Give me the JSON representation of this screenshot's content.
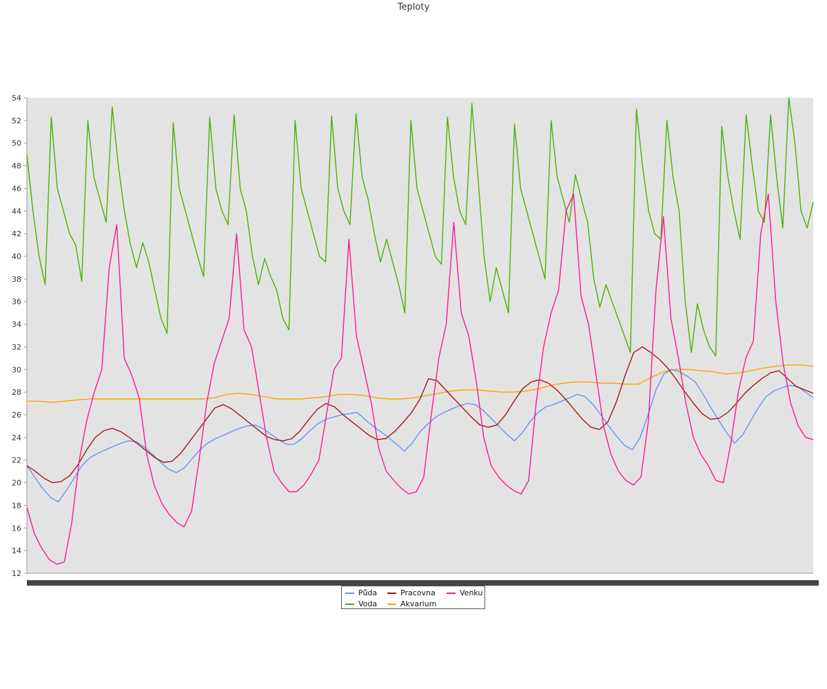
{
  "chart_data": {
    "type": "line",
    "title": "Teploty",
    "xlabel": "",
    "ylabel": "",
    "ylim": [
      12,
      54
    ],
    "yticks": [
      12,
      14,
      16,
      18,
      20,
      22,
      24,
      26,
      28,
      30,
      32,
      34,
      36,
      38,
      40,
      42,
      44,
      46,
      48,
      50,
      52,
      54
    ],
    "grid": false,
    "legend_position": "bottom-center",
    "series": [
      {
        "name": "Půda",
        "color": "#6495ed",
        "values": [
          21.5,
          20.5,
          19.5,
          18.7,
          18.3,
          19.3,
          20.4,
          21.5,
          22.2,
          22.6,
          22.9,
          23.2,
          23.5,
          23.7,
          23.6,
          23.1,
          22.5,
          21.8,
          21.2,
          20.9,
          21.3,
          22.1,
          22.9,
          23.5,
          23.9,
          24.2,
          24.5,
          24.8,
          25.0,
          25.1,
          24.8,
          24.3,
          23.8,
          23.4,
          23.4,
          23.9,
          24.6,
          25.2,
          25.6,
          25.8,
          26.0,
          26.1,
          26.2,
          25.6,
          25.0,
          24.5,
          24.0,
          23.4,
          22.8,
          23.5,
          24.5,
          25.2,
          25.8,
          26.2,
          26.5,
          26.8,
          27.0,
          26.9,
          26.4,
          25.7,
          25.0,
          24.3,
          23.7,
          24.4,
          25.4,
          26.2,
          26.7,
          26.9,
          27.2,
          27.5,
          27.8,
          27.6,
          26.9,
          26.0,
          25.0,
          24.1,
          23.3,
          22.9,
          24.0,
          26.0,
          28.2,
          29.6,
          30.0,
          29.8,
          29.4,
          28.9,
          27.8,
          26.6,
          25.5,
          24.4,
          23.5,
          24.2,
          25.4,
          26.6,
          27.6,
          28.1,
          28.4,
          28.6,
          28.5,
          28.0,
          27.5
        ]
      },
      {
        "name": "Voda",
        "color": "#4cae00",
        "values": [
          49.0,
          44.0,
          40.0,
          37.5,
          52.3,
          46.0,
          44.0,
          42.0,
          41.0,
          37.8,
          52.0,
          47.0,
          45.0,
          43.0,
          53.2,
          48.0,
          44.0,
          41.0,
          39.0,
          41.2,
          39.5,
          37.0,
          34.5,
          33.2,
          51.8,
          46.0,
          44.0,
          42.0,
          40.0,
          38.2,
          52.3,
          46.0,
          44.0,
          42.8,
          52.5,
          46.0,
          44.0,
          40.0,
          37.5,
          39.8,
          38.2,
          37.0,
          34.5,
          33.5,
          52.0,
          46.0,
          44.0,
          42.0,
          40.0,
          39.5,
          52.4,
          46.0,
          44.0,
          42.8,
          52.6,
          47.0,
          45.0,
          42.0,
          39.5,
          41.5,
          39.5,
          37.5,
          35.0,
          52.0,
          46.0,
          44.0,
          42.0,
          40.0,
          39.3,
          52.3,
          47.0,
          44.0,
          42.8,
          53.5,
          47.0,
          40.0,
          36.0,
          39.0,
          37.0,
          35.0,
          51.7,
          46.0,
          44.0,
          42.0,
          40.0,
          38.0,
          52.0,
          47.0,
          45.0,
          43.0,
          47.2,
          45.0,
          43.0,
          38.0,
          35.5,
          37.5,
          36.0,
          34.5,
          33.0,
          31.5,
          53.0,
          48.0,
          44.0,
          42.0,
          41.5,
          52.0,
          47.0,
          44.0,
          36.0,
          31.5,
          35.8,
          33.5,
          32.0,
          31.2,
          51.5,
          47.0,
          44.0,
          41.5,
          52.5,
          48.0,
          44.0,
          43.0,
          52.5,
          47.0,
          42.5,
          54.0,
          50.0,
          44.0,
          42.5,
          44.8
        ]
      },
      {
        "name": "Pracovna",
        "color": "#a01818",
        "values": [
          21.5,
          21.0,
          20.4,
          20.0,
          20.1,
          20.6,
          21.6,
          22.9,
          24.0,
          24.6,
          24.8,
          24.5,
          24.0,
          23.4,
          22.8,
          22.2,
          21.8,
          21.9,
          22.6,
          23.6,
          24.6,
          25.6,
          26.6,
          26.9,
          26.5,
          25.9,
          25.3,
          24.7,
          24.1,
          23.8,
          23.7,
          23.9,
          24.6,
          25.6,
          26.5,
          27.0,
          26.7,
          26.0,
          25.4,
          24.8,
          24.2,
          23.8,
          23.9,
          24.5,
          25.3,
          26.2,
          27.4,
          29.2,
          29.0,
          28.2,
          27.4,
          26.6,
          25.8,
          25.1,
          24.9,
          25.1,
          26.0,
          27.2,
          28.3,
          28.9,
          29.1,
          28.8,
          28.2,
          27.4,
          26.5,
          25.6,
          24.9,
          24.7,
          25.4,
          27.2,
          29.5,
          31.5,
          32.0,
          31.5,
          30.9,
          30.1,
          29.1,
          28.0,
          27.0,
          26.1,
          25.6,
          25.7,
          26.2,
          27.0,
          27.9,
          28.6,
          29.2,
          29.7,
          29.9,
          29.2,
          28.5,
          28.2,
          27.9
        ]
      },
      {
        "name": "Venku",
        "color": "#ff1493",
        "values": [
          17.8,
          15.5,
          14.2,
          13.2,
          12.8,
          13.0,
          16.5,
          22.0,
          25.5,
          28.0,
          30.0,
          39.0,
          42.8,
          31.0,
          29.5,
          27.5,
          22.5,
          19.8,
          18.2,
          17.2,
          16.5,
          16.1,
          17.5,
          22.0,
          27.0,
          30.5,
          32.5,
          34.5,
          42.0,
          33.5,
          32.0,
          28.0,
          24.0,
          21.0,
          20.0,
          19.2,
          19.2,
          19.8,
          20.8,
          22.0,
          26.0,
          30.0,
          31.0,
          41.5,
          33.0,
          30.0,
          27.0,
          23.0,
          21.0,
          20.2,
          19.5,
          19.0,
          19.2,
          20.5,
          26.0,
          31.0,
          34.0,
          43.0,
          35.0,
          33.0,
          29.0,
          24.0,
          21.5,
          20.5,
          19.8,
          19.3,
          19.0,
          20.2,
          27.0,
          32.0,
          35.0,
          37.0,
          44.0,
          45.5,
          36.5,
          34.0,
          29.5,
          25.0,
          22.5,
          21.0,
          20.2,
          19.8,
          20.5,
          25.5,
          37.0,
          43.5,
          34.5,
          31.0,
          27.0,
          24.0,
          22.5,
          21.5,
          20.2,
          20.0,
          23.5,
          28.0,
          31.0,
          32.5,
          42.0,
          45.5,
          36.0,
          30.5,
          27.0,
          25.0,
          24.0,
          23.8
        ]
      },
      {
        "name": "Akvarium",
        "color": "#ffa500",
        "values": [
          27.2,
          27.2,
          27.1,
          27.2,
          27.3,
          27.4,
          27.4,
          27.4,
          27.4,
          27.4,
          27.4,
          27.4,
          27.4,
          27.4,
          27.4,
          27.5,
          27.8,
          27.9,
          27.8,
          27.6,
          27.4,
          27.4,
          27.4,
          27.5,
          27.6,
          27.8,
          27.8,
          27.7,
          27.5,
          27.4,
          27.4,
          27.5,
          27.7,
          27.9,
          28.1,
          28.2,
          28.2,
          28.1,
          28.0,
          28.0,
          28.1,
          28.3,
          28.6,
          28.8,
          28.9,
          28.9,
          28.8,
          28.8,
          28.7,
          28.7,
          29.3,
          29.8,
          30.0,
          30.0,
          29.9,
          29.8,
          29.6,
          29.7,
          29.9,
          30.1,
          30.3,
          30.4,
          30.4,
          30.3
        ]
      }
    ]
  }
}
